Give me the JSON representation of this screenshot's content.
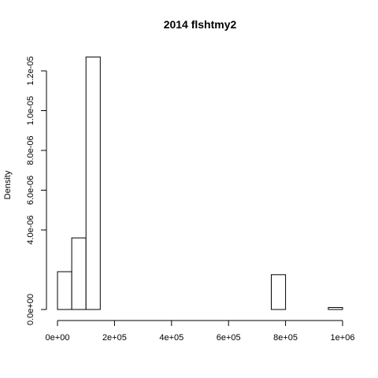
{
  "chart_data": {
    "type": "bar",
    "title": "2014 flshtmy2",
    "xlabel": "",
    "ylabel": "Density",
    "grid": false,
    "legend": "none",
    "xlim": [
      0,
      1000000
    ],
    "ylim": [
      0,
      1.2e-05
    ],
    "bin_width": 50000,
    "bins": [
      {
        "start": 0,
        "end": 50000,
        "density": 1.9e-06
      },
      {
        "start": 50000,
        "end": 100000,
        "density": 3.6e-06
      },
      {
        "start": 100000,
        "end": 150000,
        "density": 1.27e-05
      },
      {
        "start": 150000,
        "end": 200000,
        "density": 0
      },
      {
        "start": 200000,
        "end": 250000,
        "density": 0
      },
      {
        "start": 250000,
        "end": 300000,
        "density": 0
      },
      {
        "start": 300000,
        "end": 350000,
        "density": 0
      },
      {
        "start": 350000,
        "end": 400000,
        "density": 0
      },
      {
        "start": 400000,
        "end": 450000,
        "density": 0
      },
      {
        "start": 450000,
        "end": 500000,
        "density": 0
      },
      {
        "start": 500000,
        "end": 550000,
        "density": 0
      },
      {
        "start": 550000,
        "end": 600000,
        "density": 0
      },
      {
        "start": 600000,
        "end": 650000,
        "density": 0
      },
      {
        "start": 650000,
        "end": 700000,
        "density": 0
      },
      {
        "start": 700000,
        "end": 750000,
        "density": 0
      },
      {
        "start": 750000,
        "end": 800000,
        "density": 1.75e-06
      },
      {
        "start": 800000,
        "end": 850000,
        "density": 0
      },
      {
        "start": 850000,
        "end": 900000,
        "density": 0
      },
      {
        "start": 900000,
        "end": 950000,
        "density": 0
      },
      {
        "start": 950000,
        "end": 1000000,
        "density": 1e-07
      }
    ],
    "x_ticks": [
      {
        "value": 0,
        "label": "0e+00"
      },
      {
        "value": 200000,
        "label": "2e+05"
      },
      {
        "value": 400000,
        "label": "4e+05"
      },
      {
        "value": 600000,
        "label": "6e+05"
      },
      {
        "value": 800000,
        "label": "8e+05"
      },
      {
        "value": 1000000,
        "label": "1e+06"
      }
    ],
    "y_ticks": [
      {
        "value": 0,
        "label": "0.0e+00"
      },
      {
        "value": 4e-06,
        "label": "4.0e-06"
      },
      {
        "value": 6e-06,
        "label": "6.0e-06"
      },
      {
        "value": 8e-06,
        "label": "8.0e-06"
      },
      {
        "value": 1e-05,
        "label": "1.0e-05"
      },
      {
        "value": 1.2e-05,
        "label": "1.2e-05"
      }
    ],
    "colors": {
      "bar_fill": "#ffffff",
      "bar_stroke": "#000000"
    }
  }
}
